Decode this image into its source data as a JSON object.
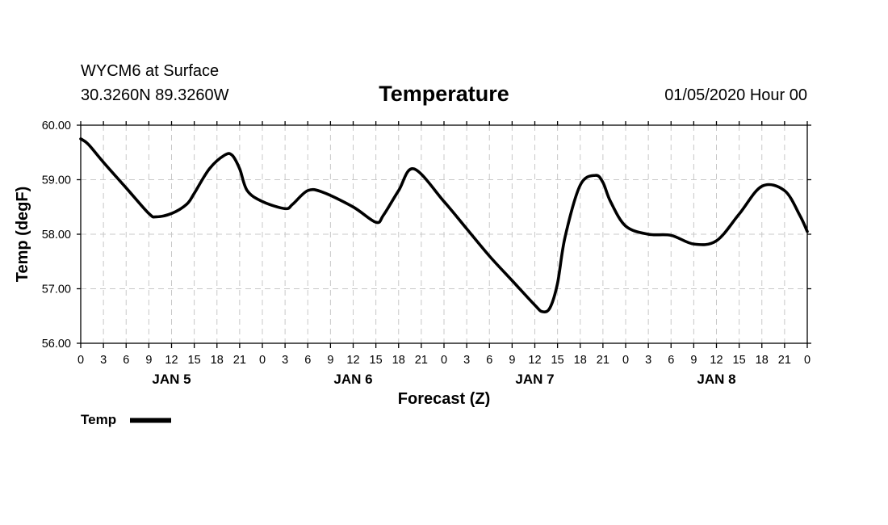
{
  "chart_data": {
    "type": "line",
    "station": "WYCM6 at Surface",
    "location": "30.3260N 89.3260W",
    "title": "Temperature",
    "init_time": "01/05/2020 Hour 00",
    "xlabel": "Forecast (Z)",
    "ylabel": "Temp (degF)",
    "ylim": [
      56,
      60
    ],
    "y_ticks": [
      "56.00",
      "57.00",
      "58.00",
      "59.00",
      "60.00"
    ],
    "xlim": [
      0,
      96
    ],
    "x_tick_labels": [
      "0",
      "3",
      "6",
      "9",
      "12",
      "15",
      "18",
      "21",
      "0",
      "3",
      "6",
      "9",
      "12",
      "15",
      "18",
      "21",
      "0",
      "3",
      "6",
      "9",
      "12",
      "15",
      "18",
      "21",
      "0",
      "3",
      "6",
      "9",
      "12",
      "15",
      "18",
      "21",
      "0"
    ],
    "day_labels": [
      {
        "label": "JAN 5",
        "hour": 12
      },
      {
        "label": "JAN 6",
        "hour": 36
      },
      {
        "label": "JAN 7",
        "hour": 60
      },
      {
        "label": "JAN 8",
        "hour": 84
      }
    ],
    "grid": true,
    "legend": {
      "entries": [
        "Temp"
      ],
      "placement": "bottom-left"
    },
    "series": [
      {
        "name": "Temp",
        "x": [
          0,
          1,
          3,
          6,
          9,
          10,
          12,
          14,
          15,
          17,
          19,
          20,
          21,
          22,
          24,
          27,
          28,
          30,
          32,
          36,
          39,
          40,
          42,
          44,
          48,
          51,
          54,
          57,
          60,
          61,
          62,
          63,
          64,
          66,
          68,
          69,
          70,
          72,
          75,
          78,
          81,
          84,
          87,
          90,
          93,
          95,
          96
        ],
        "values": [
          59.75,
          59.65,
          59.32,
          58.85,
          58.38,
          58.32,
          58.38,
          58.55,
          58.75,
          59.2,
          59.45,
          59.45,
          59.2,
          58.8,
          58.6,
          58.47,
          58.55,
          58.8,
          58.77,
          58.5,
          58.22,
          58.35,
          58.8,
          59.2,
          58.6,
          58.1,
          57.6,
          57.15,
          56.7,
          56.58,
          56.65,
          57.1,
          57.95,
          58.9,
          59.08,
          58.95,
          58.6,
          58.15,
          58.0,
          57.98,
          57.82,
          57.88,
          58.37,
          58.88,
          58.8,
          58.35,
          58.05
        ]
      }
    ]
  }
}
